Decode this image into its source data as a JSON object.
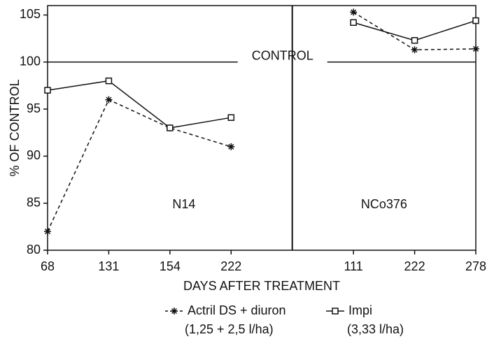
{
  "chart_data": {
    "type": "line",
    "categories": [
      "68",
      "131",
      "154",
      "222",
      null,
      "111",
      "222",
      "278"
    ],
    "series": [
      {
        "name": "Actril DS + diuron",
        "dose": "(1,25 + 2,5 l/ha)",
        "color": "#111111",
        "dash": true,
        "marker": "star",
        "values": [
          82,
          96,
          93,
          91,
          null,
          105.3,
          101.3,
          101.4
        ]
      },
      {
        "name": "Impi",
        "dose": "(3,33 l/ha)",
        "color": "#111111",
        "dash": false,
        "marker": "square",
        "values": [
          97,
          98,
          93,
          94.1,
          null,
          104.2,
          102.3,
          104.4
        ]
      }
    ],
    "ylim": [
      80,
      106
    ],
    "yticks": [
      80,
      85,
      90,
      95,
      100,
      105
    ],
    "ylabel": "% OF CONTROL",
    "xlabel": "DAYS AFTER TREATMENT",
    "reference_line": {
      "label": "CONTROL",
      "value": 100
    },
    "panel_labels": [
      "N14",
      "NCo376"
    ]
  }
}
